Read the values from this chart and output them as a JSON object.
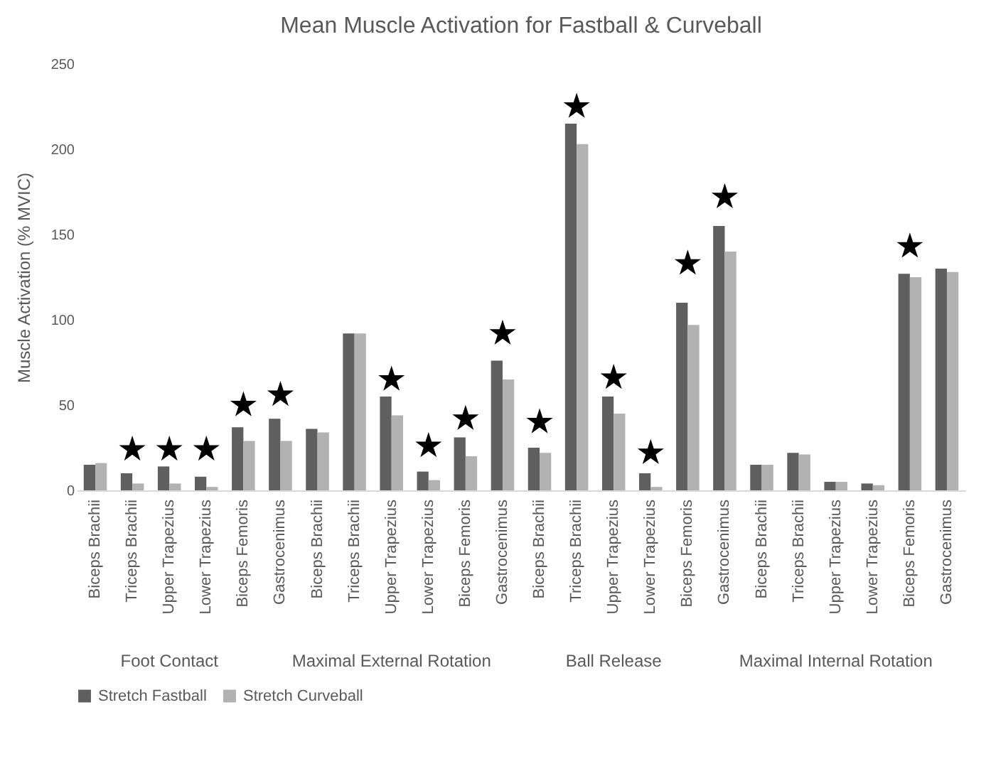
{
  "chart_data": {
    "type": "bar",
    "title": "Mean Muscle Activation for Fastball & Curveball",
    "ylabel": "Muscle Activation (% MVIC)",
    "categories": [
      "Biceps Brachii",
      "Triceps Brachii",
      "Upper Trapezius",
      "Lower Trapezius",
      "Biceps Femoris",
      "Gastrocenimus",
      "Biceps Brachii",
      "Triceps Brachii",
      "Upper Trapezius",
      "Lower Trapezius",
      "Biceps Femoris",
      "Gastrocenimus",
      "Biceps Brachii",
      "Triceps Brachii",
      "Upper Trapezius",
      "Lower Trapezius",
      "Biceps Femoris",
      "Gastrocenimus",
      "Biceps Brachii",
      "Triceps Brachii",
      "Upper Trapezius",
      "Lower Trapezius",
      "Biceps Femoris",
      "Gastrocenimus"
    ],
    "series": [
      {
        "name": "Stretch Fastball",
        "color": "#5f5f5f",
        "values": [
          15,
          10,
          14,
          8,
          37,
          42,
          36,
          92,
          55,
          11,
          31,
          76,
          25,
          215,
          55,
          10,
          110,
          155,
          15,
          22,
          5,
          4,
          127,
          130
        ]
      },
      {
        "name": "Stretch Curveball",
        "color": "#b2b2b2",
        "values": [
          16,
          4,
          4,
          2,
          29,
          29,
          34,
          92,
          44,
          6,
          20,
          65,
          22,
          203,
          45,
          2,
          97,
          140,
          15,
          21,
          5,
          3,
          125,
          128
        ]
      },
      {
        "type": "scatter",
        "marker": "star",
        "color": "#000000",
        "values": [
          null,
          24,
          24,
          24,
          50,
          56,
          null,
          null,
          65,
          26,
          42,
          92,
          40,
          225,
          66,
          22,
          133,
          172,
          null,
          null,
          null,
          null,
          143,
          null
        ]
      }
    ],
    "annotations": [
      "Foot Contact",
      "Maximal External Rotation",
      "Ball Release",
      "Maximal Internal Rotation"
    ],
    "ylim": [
      0,
      250
    ],
    "yticks": [
      0,
      50,
      100,
      150,
      200,
      250
    ],
    "grid": false,
    "legend": "bottom"
  }
}
